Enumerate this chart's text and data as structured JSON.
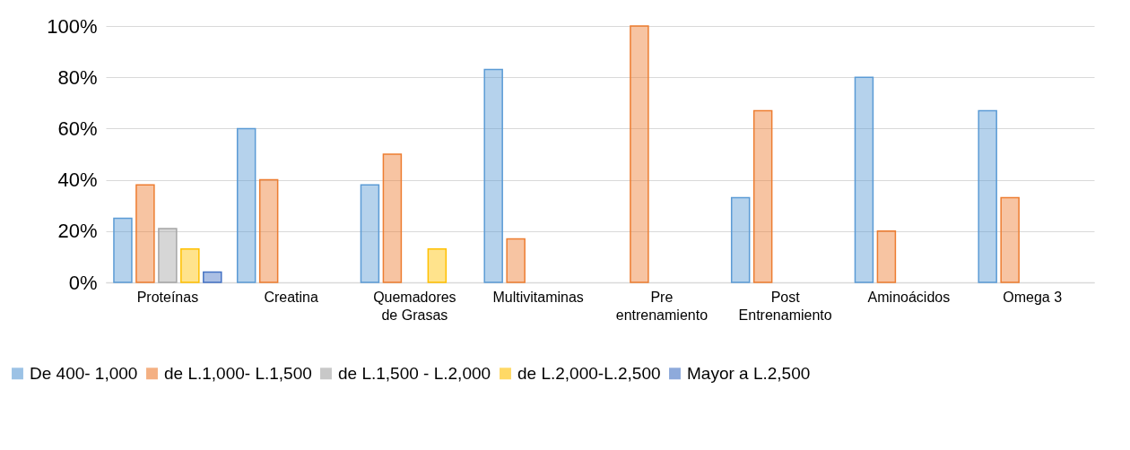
{
  "chart_data": {
    "type": "bar",
    "categories": [
      "Proteínas",
      "Creatina",
      "Quemadores de Grasas",
      "Multivitaminas",
      "Pre entrenamiento",
      "Post Entrenamiento",
      "Aminoácidos",
      "Omega 3"
    ],
    "series": [
      {
        "name": "De 400- 1,000",
        "color": "#5b9bd5",
        "values": [
          25,
          60,
          38,
          83,
          null,
          33,
          80,
          67
        ]
      },
      {
        "name": "de L.1,000- L.1,500",
        "color": "#ed7d31",
        "values": [
          38,
          40,
          50,
          17,
          100,
          67,
          20,
          33
        ]
      },
      {
        "name": "de L.1,500 - L.2,000",
        "color": "#a5a5a5",
        "values": [
          21,
          null,
          null,
          null,
          null,
          null,
          null,
          null
        ]
      },
      {
        "name": "de L.2,000-L.2,500",
        "color": "#ffc000",
        "values": [
          13,
          null,
          13,
          null,
          null,
          null,
          null,
          null
        ]
      },
      {
        "name": "Mayor a L.2,500",
        "color": "#4472c4",
        "values": [
          4,
          null,
          null,
          null,
          null,
          null,
          null,
          null
        ]
      }
    ],
    "ylim": [
      0,
      100
    ],
    "yticks": [
      {
        "value": 0,
        "label": "0%"
      },
      {
        "value": 20,
        "label": "20%"
      },
      {
        "value": 40,
        "label": "40%"
      },
      {
        "value": 60,
        "label": "60%"
      },
      {
        "value": 80,
        "label": "80%"
      },
      {
        "value": 100,
        "label": "100%"
      }
    ],
    "grid": "y",
    "legend": "bottom left"
  }
}
